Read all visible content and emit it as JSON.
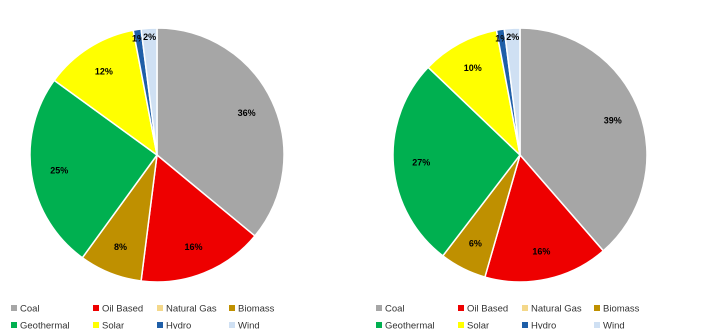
{
  "chart_data": [
    {
      "type": "pie",
      "categories": [
        "Coal",
        "Oil Based",
        "Natural Gas",
        "Biomass",
        "Geothermal",
        "Solar",
        "Hydro",
        "Wind"
      ],
      "values": [
        36,
        16,
        0,
        8,
        25,
        12,
        1,
        2
      ],
      "data_labels": [
        "36%",
        "16%",
        "",
        "8%",
        "25%",
        "12%",
        "1%",
        "2%"
      ],
      "legend_placement": "bottom"
    },
    {
      "type": "pie",
      "categories": [
        "Coal",
        "Oil Based",
        "Natural Gas",
        "Biomass",
        "Geothermal",
        "Solar",
        "Hydro",
        "Wind"
      ],
      "values": [
        39,
        16,
        0,
        6,
        27,
        10,
        1,
        2
      ],
      "data_labels": [
        "39%",
        "16%",
        "",
        "6%",
        "27%",
        "10%",
        "1%",
        "2%"
      ],
      "legend_placement": "bottom"
    }
  ],
  "colors": {
    "Coal": "#a6a6a6",
    "Oil Based": "#ee0000",
    "Natural Gas": "#f4d88a",
    "Biomass": "#bf9000",
    "Geothermal": "#00b050",
    "Solar": "#ffff00",
    "Hydro": "#1f5fa8",
    "Wind": "#cfe0f3"
  }
}
